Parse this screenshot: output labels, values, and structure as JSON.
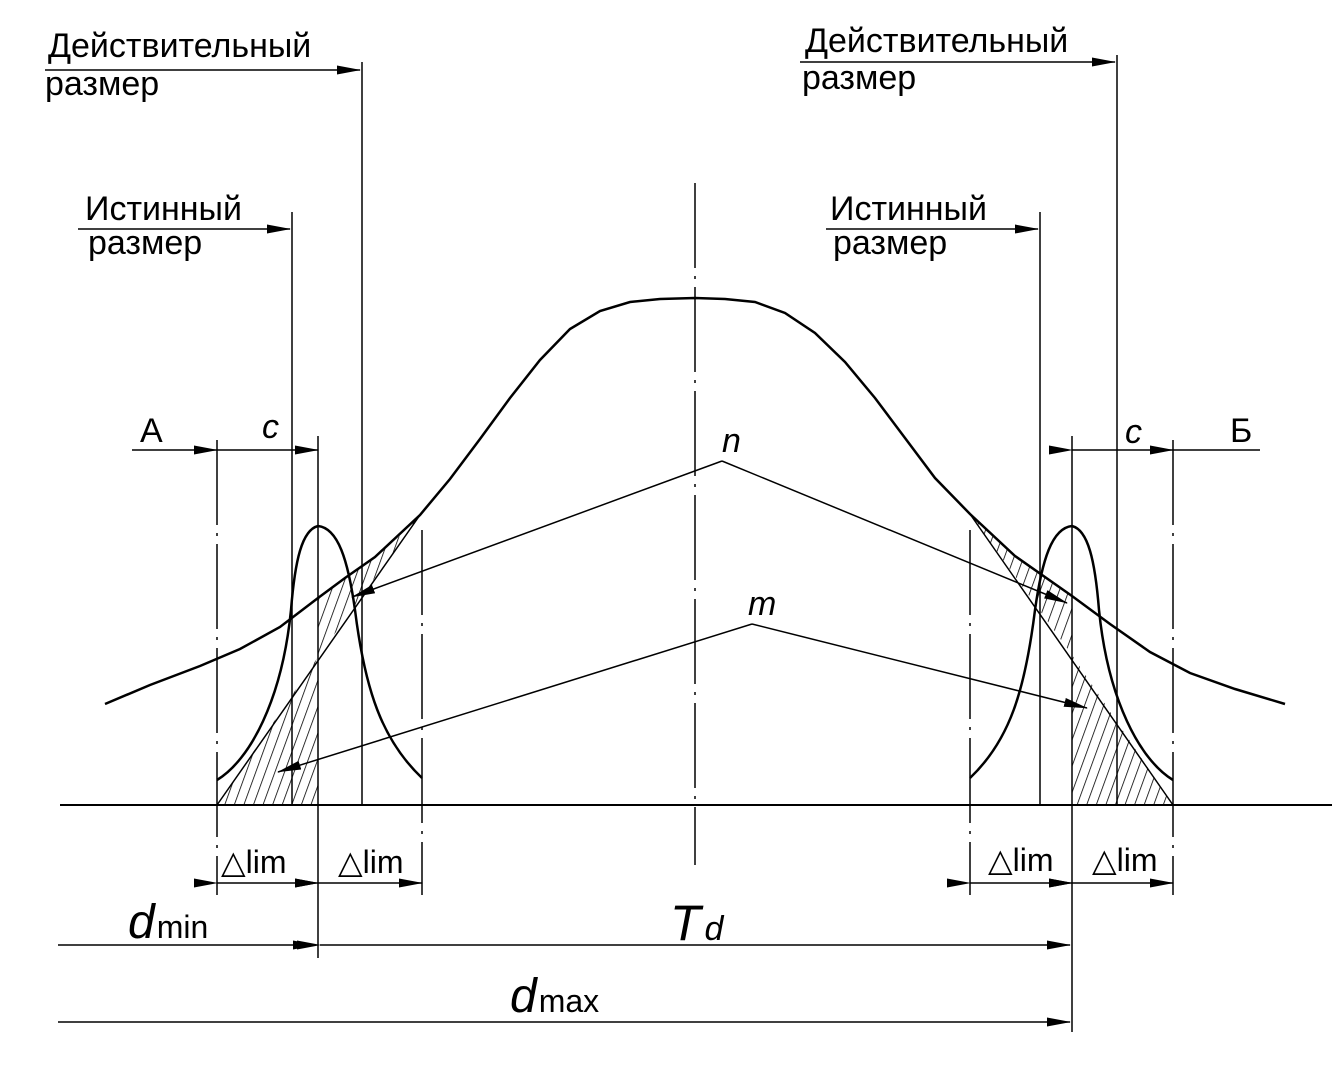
{
  "left": {
    "actual_size": {
      "line1": "Действительный",
      "line2": "размер"
    },
    "true_size": {
      "line1": "Истинный",
      "line2": "размер"
    },
    "point": "А",
    "gap": "c"
  },
  "right": {
    "actual_size": {
      "line1": "Действительный",
      "line2": "размер"
    },
    "true_size": {
      "line1": "Истинный",
      "line2": "размер"
    },
    "point": "Б",
    "gap": "c"
  },
  "curve_labels": {
    "n": "n",
    "m": "m"
  },
  "delta_lim": {
    "symbol": "△",
    "text": "lim"
  },
  "dims": {
    "dmin": {
      "main": "d",
      "sub": "min"
    },
    "Td": {
      "main": "T",
      "sub": "d"
    },
    "dmax": {
      "main": "d",
      "sub": "max"
    }
  },
  "colors": {
    "ink": "#000000",
    "background": "#ffffff"
  }
}
